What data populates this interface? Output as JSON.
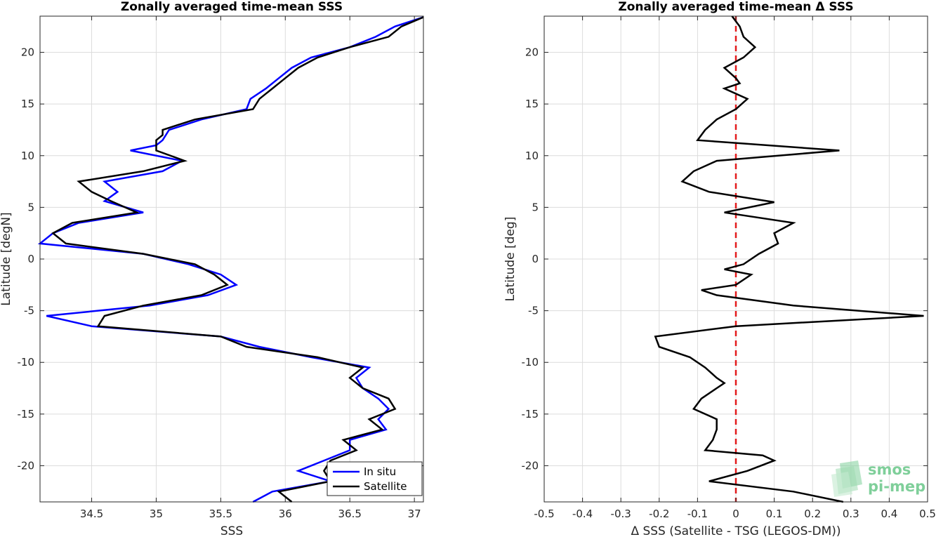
{
  "logo": {
    "line1": "smos",
    "line2": "pi-mep",
    "color": "#7fcf9a"
  },
  "chart_data": [
    {
      "type": "line",
      "title": "Zonally averaged time-mean SSS",
      "xlabel": "SSS",
      "ylabel": "Latitude [degN]",
      "xlim": [
        34.1,
        37.07
      ],
      "ylim": [
        -23.5,
        23.5
      ],
      "xticks": [
        34.5,
        35,
        35.5,
        36,
        36.5,
        37
      ],
      "yticks": [
        -20,
        -15,
        -10,
        -5,
        0,
        5,
        10,
        15,
        20
      ],
      "grid": true,
      "legend_position": "bottom-right",
      "series": [
        {
          "name": "In situ",
          "color": "#0000ff",
          "points": [
            [
              37.07,
              23.4
            ],
            [
              36.85,
              22.5
            ],
            [
              36.7,
              21.5
            ],
            [
              36.5,
              20.5
            ],
            [
              36.2,
              19.5
            ],
            [
              36.05,
              18.5
            ],
            [
              35.95,
              17.5
            ],
            [
              35.85,
              16.5
            ],
            [
              35.73,
              15.5
            ],
            [
              35.7,
              14.5
            ],
            [
              35.35,
              13.5
            ],
            [
              35.1,
              12.5
            ],
            [
              35.05,
              11.5
            ],
            [
              35.0,
              11.0
            ],
            [
              34.8,
              10.5
            ],
            [
              35.2,
              9.5
            ],
            [
              35.05,
              8.5
            ],
            [
              34.6,
              7.5
            ],
            [
              34.7,
              6.5
            ],
            [
              34.6,
              5.6
            ],
            [
              34.9,
              4.5
            ],
            [
              34.4,
              3.5
            ],
            [
              34.2,
              2.5
            ],
            [
              34.1,
              1.5
            ],
            [
              34.9,
              0.5
            ],
            [
              35.25,
              -0.5
            ],
            [
              35.5,
              -1.5
            ],
            [
              35.62,
              -2.5
            ],
            [
              35.4,
              -3.5
            ],
            [
              34.95,
              -4.5
            ],
            [
              34.15,
              -5.5
            ],
            [
              34.5,
              -6.5
            ],
            [
              35.5,
              -7.5
            ],
            [
              35.8,
              -8.5
            ],
            [
              36.2,
              -9.5
            ],
            [
              36.65,
              -10.5
            ],
            [
              36.55,
              -11.5
            ],
            [
              36.6,
              -12.5
            ],
            [
              36.72,
              -13.5
            ],
            [
              36.8,
              -14.5
            ],
            [
              36.72,
              -15.5
            ],
            [
              36.78,
              -16.5
            ],
            [
              36.5,
              -17.5
            ],
            [
              36.5,
              -18.5
            ],
            [
              36.3,
              -19.5
            ],
            [
              36.1,
              -20.5
            ],
            [
              36.35,
              -21.5
            ],
            [
              35.9,
              -22.5
            ],
            [
              35.75,
              -23.5
            ]
          ]
        },
        {
          "name": "Satellite",
          "color": "#000000",
          "points": [
            [
              37.07,
              23.4
            ],
            [
              36.9,
              22.5
            ],
            [
              36.8,
              21.5
            ],
            [
              36.5,
              20.5
            ],
            [
              36.25,
              19.5
            ],
            [
              36.1,
              18.5
            ],
            [
              36.0,
              17.5
            ],
            [
              35.9,
              16.5
            ],
            [
              35.8,
              15.5
            ],
            [
              35.75,
              14.5
            ],
            [
              35.3,
              13.5
            ],
            [
              35.05,
              12.5
            ],
            [
              35.05,
              12.0
            ],
            [
              35.0,
              11.5
            ],
            [
              35.0,
              10.5
            ],
            [
              35.22,
              9.5
            ],
            [
              34.9,
              8.5
            ],
            [
              34.4,
              7.5
            ],
            [
              34.5,
              6.5
            ],
            [
              34.65,
              5.6
            ],
            [
              34.85,
              4.5
            ],
            [
              34.35,
              3.5
            ],
            [
              34.2,
              2.5
            ],
            [
              34.3,
              1.5
            ],
            [
              34.9,
              0.5
            ],
            [
              35.3,
              -0.5
            ],
            [
              35.45,
              -1.5
            ],
            [
              35.55,
              -2.5
            ],
            [
              35.35,
              -3.5
            ],
            [
              34.9,
              -4.5
            ],
            [
              34.6,
              -5.5
            ],
            [
              34.55,
              -6.5
            ],
            [
              35.5,
              -7.5
            ],
            [
              35.7,
              -8.5
            ],
            [
              36.25,
              -9.5
            ],
            [
              36.6,
              -10.5
            ],
            [
              36.5,
              -11.5
            ],
            [
              36.6,
              -12.5
            ],
            [
              36.8,
              -13.5
            ],
            [
              36.85,
              -14.5
            ],
            [
              36.65,
              -15.5
            ],
            [
              36.75,
              -16.5
            ],
            [
              36.45,
              -17.5
            ],
            [
              36.55,
              -18.5
            ],
            [
              36.35,
              -19.5
            ],
            [
              36.3,
              -20.5
            ],
            [
              36.35,
              -21.5
            ],
            [
              35.95,
              -22.5
            ],
            [
              36.05,
              -23.5
            ]
          ]
        }
      ]
    },
    {
      "type": "line",
      "title": "Zonally averaged time-mean Δ SSS",
      "xlabel": "Δ SSS (Satellite - TSG (LEGOS-DM))",
      "ylabel": "Latitude [deg]",
      "xlim": [
        -0.5,
        0.5
      ],
      "ylim": [
        -23.5,
        23.5
      ],
      "xticks": [
        -0.5,
        -0.4,
        -0.3,
        -0.2,
        -0.1,
        0,
        0.1,
        0.2,
        0.3,
        0.4,
        0.5
      ],
      "yticks": [
        -20,
        -15,
        -10,
        -5,
        0,
        5,
        10,
        15,
        20
      ],
      "grid": true,
      "reference_line": {
        "x": 0,
        "color": "#e31a1c",
        "style": "dashed"
      },
      "series": [
        {
          "color": "#000000",
          "points": [
            [
              -0.01,
              23.5
            ],
            [
              0.01,
              22.5
            ],
            [
              0.02,
              21.5
            ],
            [
              0.05,
              20.5
            ],
            [
              0.02,
              19.5
            ],
            [
              -0.03,
              18.5
            ],
            [
              0.0,
              17.5
            ],
            [
              0.01,
              17.0
            ],
            [
              -0.03,
              16.5
            ],
            [
              0.03,
              15.5
            ],
            [
              0.0,
              14.5
            ],
            [
              -0.05,
              13.5
            ],
            [
              -0.08,
              12.5
            ],
            [
              -0.1,
              11.5
            ],
            [
              0.27,
              10.5
            ],
            [
              -0.05,
              9.5
            ],
            [
              -0.11,
              8.5
            ],
            [
              -0.14,
              7.5
            ],
            [
              -0.07,
              6.5
            ],
            [
              0.1,
              5.5
            ],
            [
              -0.03,
              4.5
            ],
            [
              0.15,
              3.5
            ],
            [
              0.1,
              2.5
            ],
            [
              0.11,
              1.5
            ],
            [
              0.06,
              0.5
            ],
            [
              0.02,
              -0.5
            ],
            [
              -0.03,
              -1.0
            ],
            [
              0.04,
              -1.5
            ],
            [
              0.0,
              -2.5
            ],
            [
              -0.09,
              -3.0
            ],
            [
              -0.05,
              -3.5
            ],
            [
              0.15,
              -4.5
            ],
            [
              0.49,
              -5.5
            ],
            [
              0.0,
              -6.5
            ],
            [
              -0.21,
              -7.5
            ],
            [
              -0.2,
              -8.5
            ],
            [
              -0.12,
              -9.5
            ],
            [
              -0.08,
              -10.5
            ],
            [
              -0.05,
              -11.5
            ],
            [
              -0.03,
              -12.0
            ],
            [
              -0.05,
              -12.5
            ],
            [
              -0.09,
              -13.5
            ],
            [
              -0.11,
              -14.5
            ],
            [
              -0.05,
              -15.5
            ],
            [
              -0.05,
              -16.5
            ],
            [
              -0.06,
              -17.5
            ],
            [
              -0.08,
              -18.5
            ],
            [
              0.07,
              -19.0
            ],
            [
              0.1,
              -19.5
            ],
            [
              0.03,
              -20.5
            ],
            [
              -0.07,
              -21.5
            ],
            [
              0.15,
              -22.5
            ],
            [
              0.28,
              -23.5
            ]
          ]
        }
      ]
    }
  ]
}
